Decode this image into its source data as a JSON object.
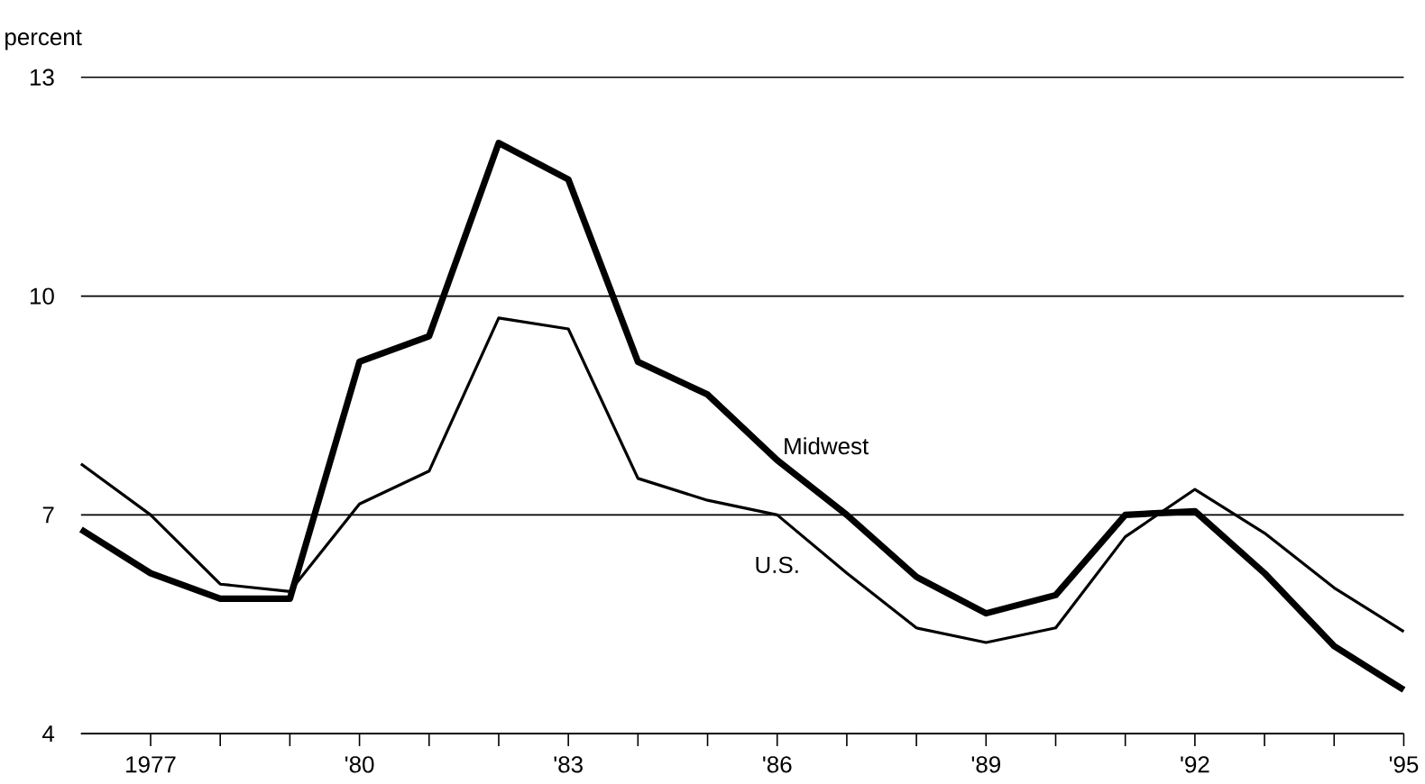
{
  "chart_data": {
    "type": "line",
    "ylabel": "percent",
    "x": [
      1976,
      1977,
      1978,
      1979,
      1980,
      1981,
      1982,
      1983,
      1984,
      1985,
      1986,
      1987,
      1988,
      1989,
      1990,
      1991,
      1992,
      1993,
      1994,
      1995
    ],
    "series": [
      {
        "name": "Midwest",
        "color": "#000000",
        "values": [
          6.8,
          6.2,
          5.85,
          5.85,
          9.1,
          9.45,
          12.1,
          11.6,
          9.1,
          8.65,
          7.75,
          7.0,
          6.15,
          5.65,
          5.9,
          7.0,
          7.05,
          6.2,
          5.2,
          4.6
        ]
      },
      {
        "name": "U.S.",
        "color": "#000000",
        "values": [
          7.7,
          7.0,
          6.05,
          5.95,
          7.15,
          7.6,
          9.7,
          9.55,
          7.5,
          7.2,
          7.0,
          6.2,
          5.45,
          5.25,
          5.45,
          6.7,
          7.35,
          6.75,
          6.0,
          5.4
        ]
      }
    ],
    "xlim": [
      1976,
      1995
    ],
    "ylim": [
      4,
      13
    ],
    "yticks": [
      4,
      7,
      10,
      13
    ],
    "xticks": [
      {
        "value": 1977,
        "label": "1977"
      },
      {
        "value": 1978,
        "label": null
      },
      {
        "value": 1979,
        "label": null
      },
      {
        "value": 1980,
        "label": "'80"
      },
      {
        "value": 1981,
        "label": null
      },
      {
        "value": 1982,
        "label": null
      },
      {
        "value": 1983,
        "label": "'83"
      },
      {
        "value": 1984,
        "label": null
      },
      {
        "value": 1985,
        "label": null
      },
      {
        "value": 1986,
        "label": "'86"
      },
      {
        "value": 1987,
        "label": null
      },
      {
        "value": 1988,
        "label": null
      },
      {
        "value": 1989,
        "label": "'89"
      },
      {
        "value": 1990,
        "label": null
      },
      {
        "value": 1991,
        "label": null
      },
      {
        "value": 1992,
        "label": "'92"
      },
      {
        "value": 1993,
        "label": null
      },
      {
        "value": 1994,
        "label": null
      },
      {
        "value": 1995,
        "label": "'95"
      }
    ],
    "grid": "y",
    "legend": false,
    "marker": "none",
    "line_style": "solid"
  }
}
